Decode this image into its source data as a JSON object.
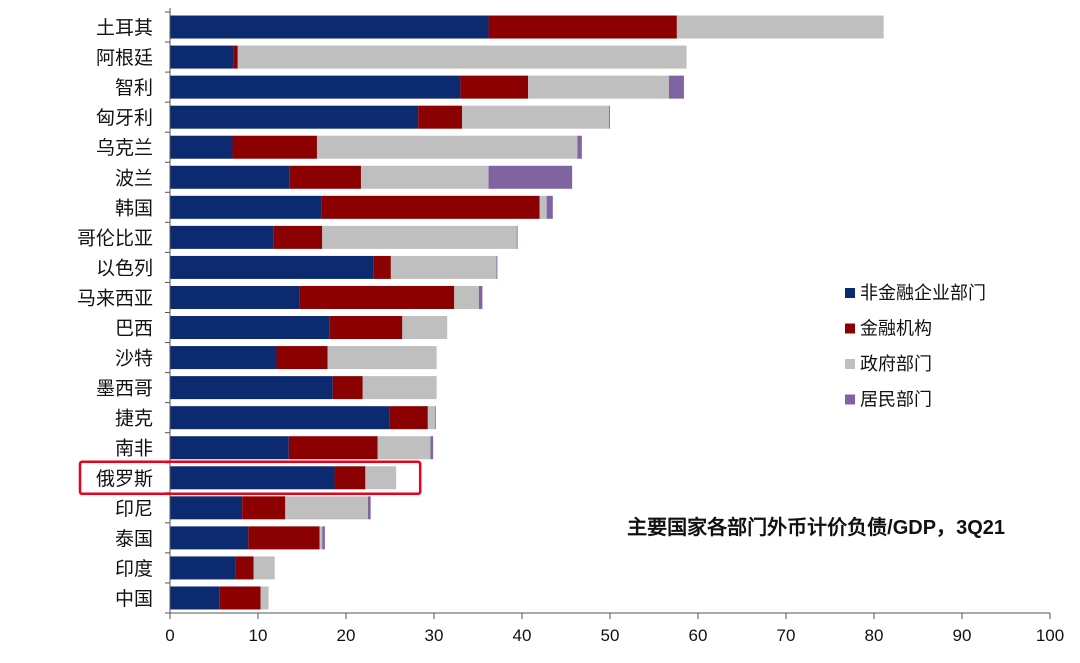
{
  "chart_data": {
    "type": "bar",
    "orientation": "horizontal",
    "stacked": true,
    "title": "主要国家各部门外币计价负债/GDP，3Q21",
    "xlabel": "",
    "ylabel": "",
    "xlim": [
      0,
      100
    ],
    "x_ticks": [
      0,
      10,
      20,
      30,
      40,
      50,
      60,
      70,
      80,
      90,
      100
    ],
    "grid": false,
    "legend_position": "right",
    "categories": [
      "土耳其",
      "阿根廷",
      "智利",
      "匈牙利",
      "乌克兰",
      "波兰",
      "韩国",
      "哥伦比亚",
      "以色列",
      "马来西亚",
      "巴西",
      "沙特",
      "墨西哥",
      "捷克",
      "南非",
      "俄罗斯",
      "印尼",
      "泰国",
      "印度",
      "中国"
    ],
    "highlighted_category": "俄罗斯",
    "series": [
      {
        "name": "非金融企业部门",
        "color": "#0B2A6F",
        "values": [
          36.2,
          7.2,
          33.0,
          28.2,
          7.1,
          13.6,
          17.2,
          11.8,
          23.1,
          14.7,
          18.1,
          12.1,
          18.5,
          24.9,
          13.5,
          18.7,
          8.2,
          8.9,
          7.4,
          5.6
        ]
      },
      {
        "name": "金融机构",
        "color": "#8B0000",
        "values": [
          21.4,
          0.5,
          7.7,
          5.0,
          9.6,
          8.1,
          24.8,
          5.5,
          2.0,
          17.6,
          8.3,
          5.8,
          3.4,
          4.4,
          10.1,
          3.5,
          4.9,
          8.1,
          2.1,
          4.7
        ]
      },
      {
        "name": "政府部门",
        "color": "#BFBFBF",
        "values": [
          23.5,
          51.0,
          16.0,
          16.7,
          29.6,
          14.5,
          0.8,
          22.1,
          12.0,
          2.8,
          5.1,
          12.4,
          8.4,
          0.8,
          6.0,
          3.5,
          9.4,
          0.3,
          2.4,
          0.9
        ]
      },
      {
        "name": "居民部门",
        "color": "#8064A2",
        "values": [
          0,
          0,
          1.7,
          0.1,
          0.5,
          9.5,
          0.7,
          0.1,
          0.1,
          0.4,
          0,
          0,
          0,
          0.1,
          0.3,
          0,
          0.3,
          0.3,
          0,
          0
        ]
      }
    ]
  }
}
